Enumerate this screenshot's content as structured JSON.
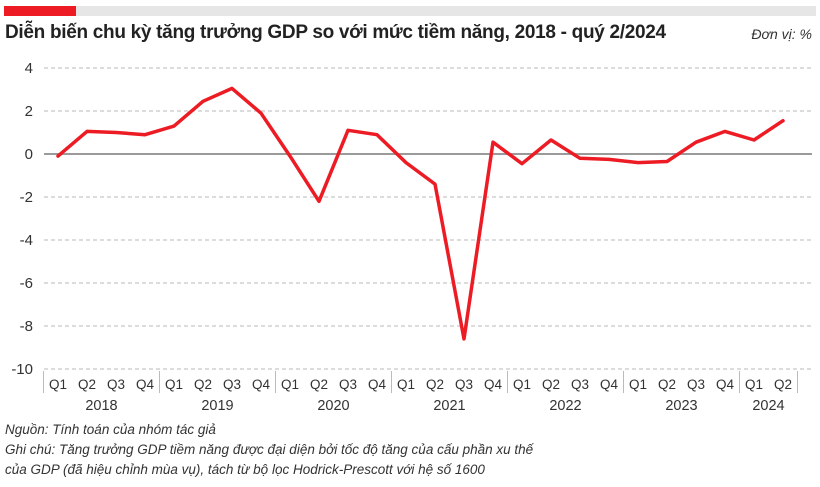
{
  "header": {
    "title": "Diễn biến chu kỳ tăng trưởng GDP so với mức tiềm năng, 2018 - quý 2/2024",
    "unit": "Đơn vị: %",
    "accent_color": "#ed1c24"
  },
  "chart_data": {
    "type": "line",
    "title": "Diễn biến chu kỳ tăng trưởng GDP so với mức tiềm năng, 2018 - quý 2/2024",
    "xlabel": "",
    "ylabel": "",
    "ylim": [
      -10,
      4
    ],
    "yticks": [
      4,
      2,
      0,
      -2,
      -4,
      -6,
      -8,
      -10
    ],
    "grid": true,
    "line_color": "#ed1c24",
    "years": [
      {
        "label": "2018",
        "quarters": [
          "Q1",
          "Q2",
          "Q3",
          "Q4"
        ]
      },
      {
        "label": "2019",
        "quarters": [
          "Q1",
          "Q2",
          "Q3",
          "Q4"
        ]
      },
      {
        "label": "2020",
        "quarters": [
          "Q1",
          "Q2",
          "Q3",
          "Q4"
        ]
      },
      {
        "label": "2021",
        "quarters": [
          "Q1",
          "Q2",
          "Q3",
          "Q4"
        ]
      },
      {
        "label": "2022",
        "quarters": [
          "Q1",
          "Q2",
          "Q3",
          "Q4"
        ]
      },
      {
        "label": "2023",
        "quarters": [
          "Q1",
          "Q2",
          "Q3",
          "Q4"
        ]
      },
      {
        "label": "2024",
        "quarters": [
          "Q1",
          "Q2"
        ]
      }
    ],
    "values": [
      -0.1,
      1.05,
      1.0,
      0.9,
      1.3,
      2.45,
      3.05,
      1.9,
      -0.1,
      -2.2,
      1.1,
      0.9,
      -0.4,
      -1.4,
      -8.6,
      0.55,
      -0.45,
      0.65,
      -0.2,
      -0.25,
      -0.4,
      -0.35,
      0.55,
      1.05,
      0.65,
      1.55
    ]
  },
  "footer": {
    "source": "Nguồn: Tính toán của nhóm tác giả",
    "note_line1": "Ghi chú: Tăng trưởng GDP tiềm năng được đại diện bởi tốc độ tăng của cấu phần xu thế",
    "note_line2": "của GDP (đã hiệu chỉnh mùa vụ), tách từ bộ lọc Hodrick-Prescott với hệ số 1600"
  }
}
